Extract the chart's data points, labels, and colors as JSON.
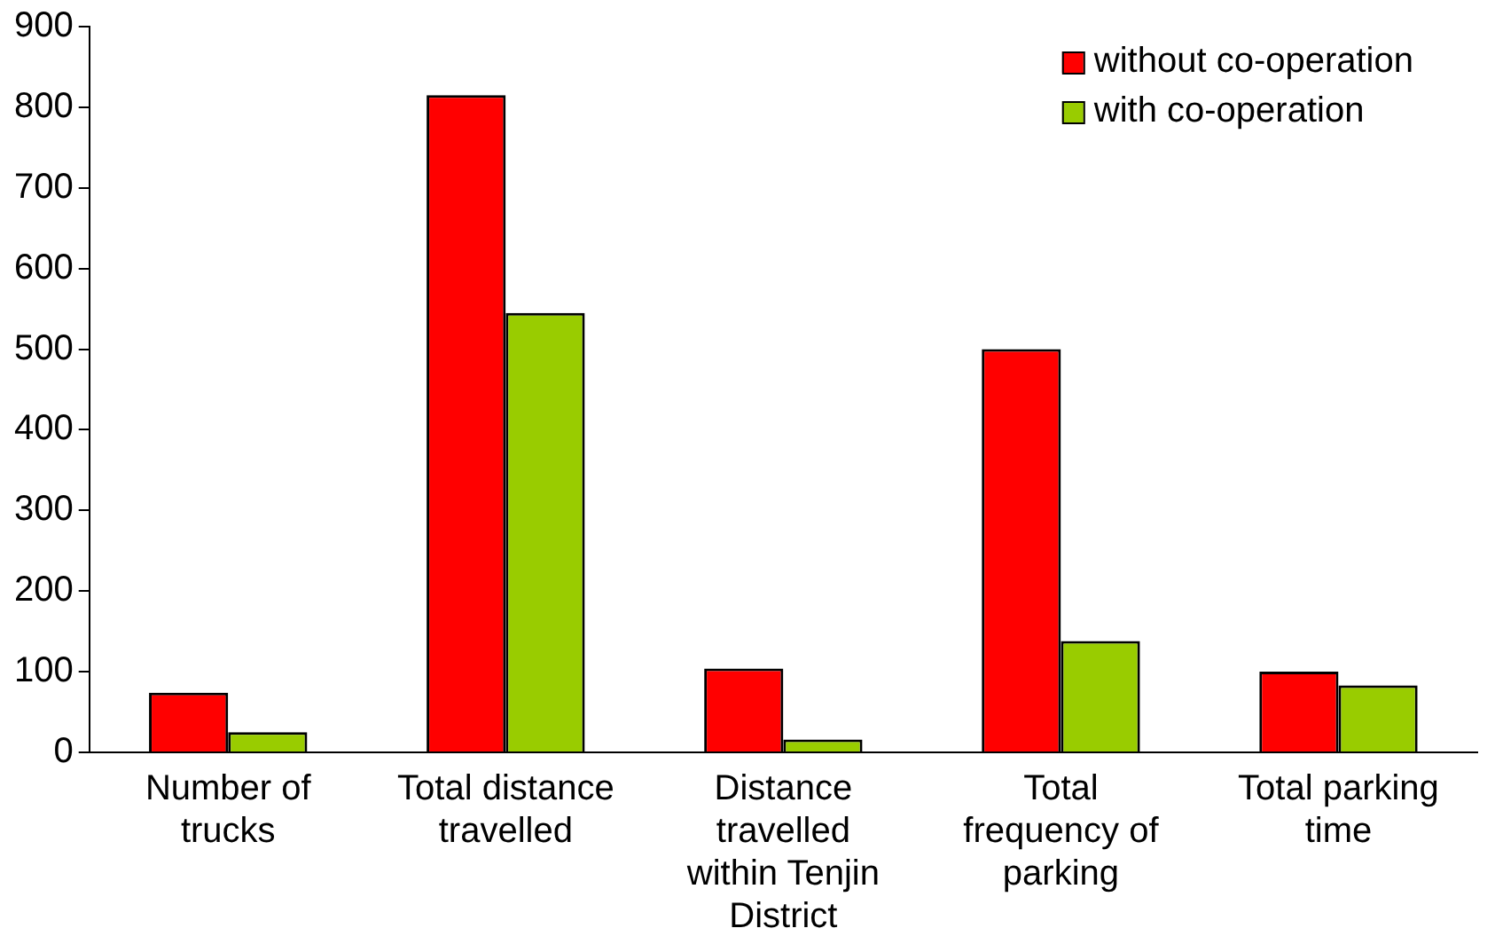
{
  "chart_data": {
    "type": "bar",
    "categories": [
      "Number of trucks",
      "Total distance travelled",
      "Distance travelled within Tenjin District",
      "Total frequency of parking",
      "Total parking time"
    ],
    "series": [
      {
        "name": "without co-operation",
        "color": "#ff0000",
        "values": [
          74,
          815,
          104,
          500,
          100
        ]
      },
      {
        "name": "with co-operation",
        "color": "#99cc00",
        "values": [
          25,
          545,
          16,
          138,
          83
        ]
      }
    ],
    "ylim": [
      0,
      900
    ],
    "yticks": [
      0,
      100,
      200,
      300,
      400,
      500,
      600,
      700,
      800,
      900
    ],
    "grid": false,
    "legend": "top right"
  }
}
